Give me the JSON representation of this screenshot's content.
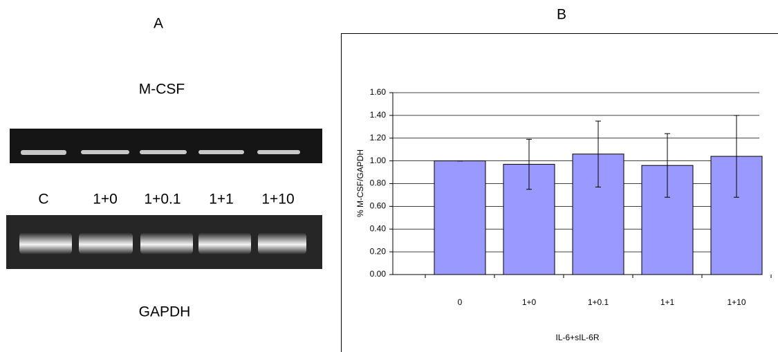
{
  "panel_a": {
    "label": "A",
    "top_label": "M-CSF",
    "lanes": [
      "C",
      "1+0",
      "1+0.1",
      "1+1",
      "1+10"
    ],
    "bottom_label": "GAPDH"
  },
  "chart_data": {
    "type": "bar",
    "panel_label": "B",
    "categories": [
      "0",
      "1+0",
      "1+0.1",
      "1+1",
      "1+10"
    ],
    "values": [
      1.0,
      0.97,
      1.06,
      0.96,
      1.04
    ],
    "errors": [
      0,
      0.22,
      0.29,
      0.28,
      0.36
    ],
    "color": "#9999ff",
    "ylim": [
      0,
      1.6
    ],
    "yticks": [
      {
        "value": 0,
        "label": "0.00"
      },
      {
        "value": 0.2,
        "label": "0.20"
      },
      {
        "value": 0.4,
        "label": "0.40"
      },
      {
        "value": 0.6,
        "label": "0.60"
      },
      {
        "value": 0.8,
        "label": "0.80"
      },
      {
        "value": 1.0,
        "label": "1.00"
      },
      {
        "value": 1.2,
        "label": "1.20"
      },
      {
        "value": 1.4,
        "label": "1.40"
      },
      {
        "value": 1.6,
        "label": "1.60"
      }
    ],
    "ylabel": "% M-CSF/GAPDH",
    "xlabel": "IL-6+sIL-6R",
    "grid": true
  }
}
